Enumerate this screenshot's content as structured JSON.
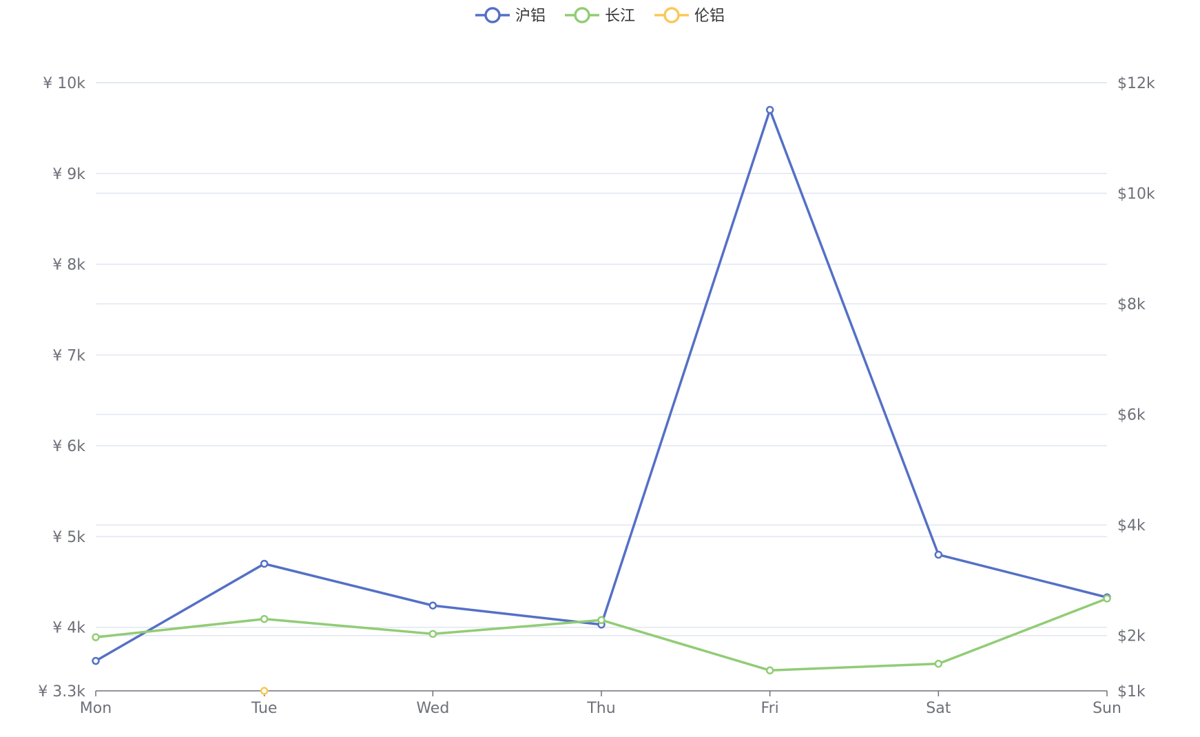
{
  "chart_data": {
    "type": "line",
    "categories": [
      "Mon",
      "Tue",
      "Wed",
      "Thu",
      "Fri",
      "Sat",
      "Sun"
    ],
    "legend": {
      "position": "top-center"
    },
    "grid": true,
    "y_left": {
      "ticks": [
        "¥ 3.3k",
        "¥ 4k",
        "¥ 5k",
        "¥ 6k",
        "¥ 7k",
        "¥ 8k",
        "¥ 9k",
        "¥ 10k"
      ],
      "range": [
        3300,
        10000
      ]
    },
    "y_right": {
      "ticks": [
        "$1k",
        "$2k",
        "$4k",
        "$6k",
        "$8k",
        "$10k",
        "$12k"
      ],
      "range": [
        1000,
        12000
      ]
    },
    "series": [
      {
        "name": "沪铝",
        "color": "#5470c6",
        "axis": "left",
        "values": [
          3630,
          4700,
          4240,
          4030,
          9700,
          4800,
          4330
        ]
      },
      {
        "name": "长江",
        "color": "#91cc75",
        "axis": "right",
        "values": [
          1970,
          2300,
          2030,
          2280,
          1370,
          1490,
          2670
        ]
      },
      {
        "name": "伦铝",
        "color": "#fac858",
        "axis": "left",
        "values": [
          null,
          3300,
          null,
          null,
          null,
          null,
          null
        ]
      }
    ]
  }
}
